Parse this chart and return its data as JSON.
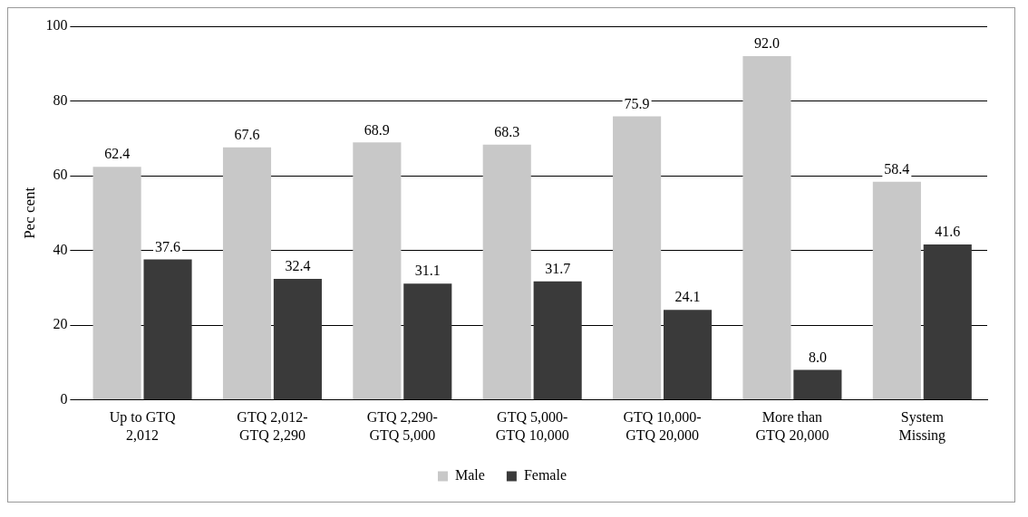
{
  "chart_data": {
    "type": "bar",
    "ylabel": "Pec cent",
    "categories": [
      "Up to GTQ\n2,012",
      "GTQ 2,012-\nGTQ 2,290",
      "GTQ 2,290-\nGTQ 5,000",
      "GTQ 5,000-\nGTQ 10,000",
      "GTQ 10,000-\nGTQ 20,000",
      "More than\nGTQ 20,000",
      "System\nMissing"
    ],
    "series": [
      {
        "name": "Male",
        "color": "#c8c8c8",
        "values": [
          62.4,
          67.6,
          68.9,
          68.3,
          75.9,
          92,
          58.4
        ],
        "value_labels": [
          "62.4",
          "67.6",
          "68.9",
          "68.3",
          "75.9",
          "92.0",
          "58.4"
        ]
      },
      {
        "name": "Female",
        "color": "#3a3a3a",
        "values": [
          37.6,
          32.4,
          31.1,
          31.7,
          24.1,
          8,
          41.6
        ],
        "value_labels": [
          "37.6",
          "32.4",
          "31.1",
          "31.7",
          "24.1",
          "8.0",
          "41.6"
        ]
      }
    ],
    "ylim": [
      0,
      100
    ],
    "yticks": [
      0,
      20,
      40,
      60,
      80,
      100
    ],
    "grid": "y",
    "legend": "bottom"
  }
}
